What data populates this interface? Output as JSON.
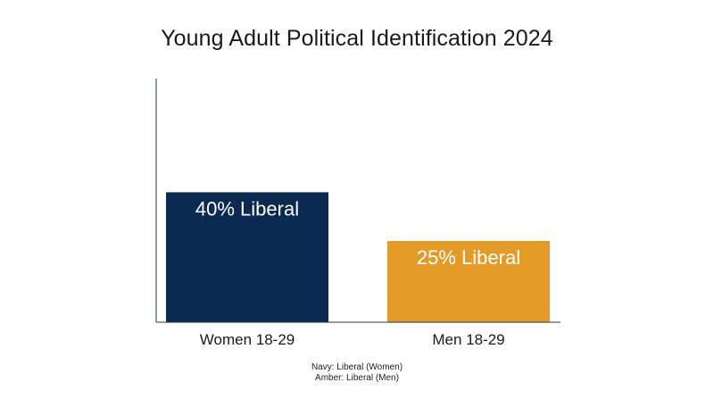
{
  "chart_data": {
    "type": "bar",
    "title": "Young Adult Political Identification 2024",
    "categories": [
      "Women 18-29",
      "Men 18-29"
    ],
    "values": [
      40,
      25
    ],
    "data_labels": [
      "40% Liberal",
      "25% Liberal"
    ],
    "colors": [
      "#0a2a52",
      "#e39b27"
    ],
    "ylim": [
      0,
      75
    ],
    "grid": false,
    "legend_notes": [
      "Navy: Liberal (Women)",
      "Amber: Liberal (Men)"
    ]
  },
  "colors": {
    "axis": "#1e3a3a",
    "label_text": "#ffffff"
  }
}
